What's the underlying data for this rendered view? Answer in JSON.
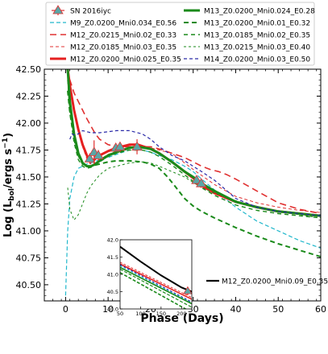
{
  "chart_data": {
    "type": "line",
    "xlabel": "Phase (Days)",
    "ylabel": "Log (L_bol/ergs s^-1)",
    "xlim": [
      -5,
      60
    ],
    "ylim": [
      40.35,
      42.5
    ],
    "xticks": [
      0,
      10,
      20,
      30,
      40,
      50,
      60
    ],
    "yticks": [
      40.5,
      40.75,
      41.0,
      41.25,
      41.5,
      41.75,
      42.0,
      42.25,
      42.5
    ],
    "legend_position": "top (above plot, 2 columns)",
    "observed": {
      "name": "SN 2016iyc",
      "color": "#e03030",
      "marker_color": "#5aa6a6",
      "points": [
        {
          "x": 5.7,
          "y": 41.67,
          "yerr": 0.05
        },
        {
          "x": 6.7,
          "y": 41.73,
          "yerr": 0.11
        },
        {
          "x": 7.7,
          "y": 41.7,
          "yerr": 0.05
        },
        {
          "x": 11.8,
          "y": 41.77,
          "yerr": 0.03
        },
        {
          "x": 12.8,
          "y": 41.78,
          "yerr": 0.03
        },
        {
          "x": 16.8,
          "y": 41.78,
          "yerr": 0.07
        },
        {
          "x": 30.8,
          "y": 41.47,
          "yerr": 0.04
        },
        {
          "x": 31.9,
          "y": 41.44,
          "yerr": 0.04
        }
      ]
    },
    "series": [
      {
        "name": "M9_Z0.0200_Mni0.034_E0.56",
        "color": "#22b8cc",
        "dash": "5,3",
        "width": 1.2,
        "x": [
          0,
          0.5,
          1,
          2,
          3,
          4,
          5,
          6,
          8,
          10,
          12,
          15,
          18,
          20,
          22,
          25,
          28,
          30,
          32,
          35,
          40,
          45,
          50,
          55,
          60
        ],
        "y": [
          40.4,
          41.0,
          41.3,
          41.5,
          41.58,
          41.6,
          41.62,
          41.63,
          41.66,
          41.68,
          41.71,
          41.75,
          41.75,
          41.73,
          41.7,
          41.66,
          41.6,
          41.55,
          41.48,
          41.38,
          41.22,
          41.09,
          41.0,
          40.91,
          40.84
        ]
      },
      {
        "name": "M12_Z0.0215_Mni0.02_E0.33",
        "color": "#e03030",
        "dash": "8,5",
        "width": 1.6,
        "x": [
          0.5,
          1,
          2,
          3,
          4,
          5,
          6,
          7,
          8,
          10,
          12,
          15,
          18,
          20,
          22,
          25,
          28,
          30,
          32,
          34,
          36,
          38,
          40,
          45,
          50,
          55,
          60
        ],
        "y": [
          42.5,
          42.4,
          42.28,
          42.2,
          42.12,
          42.04,
          41.97,
          41.9,
          41.85,
          41.8,
          41.78,
          41.78,
          41.78,
          41.78,
          41.76,
          41.72,
          41.68,
          41.64,
          41.6,
          41.57,
          41.55,
          41.52,
          41.48,
          41.37,
          41.26,
          41.2,
          41.16
        ]
      },
      {
        "name": "M12_Z0.0185_Mni0.03_E0.35",
        "color": "#e03030",
        "dash": "4,3",
        "width": 1.0,
        "x": [
          0.5,
          1,
          2,
          3,
          4,
          5,
          6,
          7,
          8,
          10,
          12,
          15,
          18,
          20,
          25,
          30,
          35,
          40,
          45,
          50,
          55,
          60
        ],
        "y": [
          42.45,
          42.3,
          42.1,
          41.93,
          41.78,
          41.67,
          41.62,
          41.63,
          41.66,
          41.71,
          41.74,
          41.77,
          41.78,
          41.77,
          41.72,
          41.57,
          41.43,
          41.32,
          41.26,
          41.22,
          41.19,
          41.17
        ]
      },
      {
        "name": "M12_Z0.0200_Mni0.025_E0.35",
        "color": "#e52020",
        "dash": "",
        "width": 3,
        "x": [
          0.5,
          1,
          2,
          3,
          4,
          5,
          5.5,
          6,
          6.5,
          7,
          8,
          10,
          12,
          15,
          17,
          20,
          22,
          25,
          28,
          30,
          32,
          35,
          40,
          45,
          50,
          55,
          60
        ],
        "y": [
          42.5,
          42.35,
          42.12,
          41.94,
          41.8,
          41.7,
          41.66,
          41.65,
          41.65,
          41.67,
          41.7,
          41.74,
          41.77,
          41.8,
          41.8,
          41.76,
          41.72,
          41.64,
          41.55,
          41.49,
          41.42,
          41.35,
          41.27,
          41.22,
          41.18,
          41.16,
          41.14
        ]
      },
      {
        "name": "M13_Z0.0200_Mni0.024_E0.28",
        "color": "#1a8a1a",
        "dash": "",
        "width": 3,
        "x": [
          0.5,
          1,
          2,
          3,
          4,
          5,
          6,
          7,
          8,
          10,
          12,
          15,
          17,
          20,
          22,
          25,
          28,
          30,
          32,
          35,
          40,
          45,
          50,
          55,
          60
        ],
        "y": [
          42.5,
          42.2,
          41.9,
          41.72,
          41.63,
          41.6,
          41.6,
          41.62,
          41.65,
          41.7,
          41.73,
          41.77,
          41.78,
          41.76,
          41.72,
          41.64,
          41.55,
          41.5,
          41.44,
          41.37,
          41.27,
          41.22,
          41.18,
          41.16,
          41.14
        ]
      },
      {
        "name": "M13_Z0.0200_Mni0.01_E0.32",
        "color": "#1a8a1a",
        "dash": "6,4",
        "width": 2,
        "x": [
          0.5,
          1,
          2,
          3,
          4,
          5,
          6,
          7,
          8,
          10,
          12,
          15,
          18,
          20,
          22,
          24,
          26,
          28,
          30,
          32,
          35,
          40,
          45,
          50,
          55,
          60
        ],
        "y": [
          42.3,
          42.1,
          41.85,
          41.7,
          41.62,
          41.6,
          41.6,
          41.61,
          41.62,
          41.64,
          41.65,
          41.65,
          41.64,
          41.62,
          41.58,
          41.5,
          41.4,
          41.3,
          41.23,
          41.18,
          41.12,
          41.03,
          40.95,
          40.88,
          40.82,
          40.76
        ]
      },
      {
        "name": "M13_Z0.0185_Mni0.02_E0.35",
        "color": "#1a8a1a",
        "dash": "5,4",
        "width": 1.4,
        "x": [
          0.5,
          1,
          2,
          3,
          4,
          5,
          6,
          7,
          8,
          10,
          12,
          15,
          18,
          20,
          22,
          25,
          28,
          30,
          32,
          35,
          40,
          45,
          50,
          55,
          60
        ],
        "y": [
          42.4,
          42.1,
          41.82,
          41.66,
          41.6,
          41.58,
          41.59,
          41.61,
          41.64,
          41.69,
          41.72,
          41.75,
          41.75,
          41.73,
          41.69,
          41.61,
          41.52,
          41.46,
          41.4,
          41.33,
          41.24,
          41.19,
          41.16,
          41.14,
          41.12
        ]
      },
      {
        "name": "M13_Z0.0215_Mni0.03_E0.40",
        "color": "#1a8a1a",
        "dash": "3,3",
        "width": 1.0,
        "x": [
          0.5,
          1,
          2,
          3,
          4,
          5,
          6,
          7,
          8,
          10,
          12,
          15,
          18,
          20,
          22,
          25,
          28,
          30,
          32,
          35,
          40,
          45,
          50,
          55,
          60
        ],
        "y": [
          41.4,
          41.2,
          41.1,
          41.15,
          41.25,
          41.35,
          41.42,
          41.47,
          41.52,
          41.58,
          41.6,
          41.63,
          41.64,
          41.63,
          41.6,
          41.55,
          41.5,
          41.45,
          41.4,
          41.35,
          41.28,
          41.22,
          41.18,
          41.15,
          41.12
        ]
      },
      {
        "name": "M14_Z0.0200_Mni0.03_E0.50",
        "color": "#2a2aa8",
        "dash": "4,3",
        "width": 1.2,
        "x": [
          1,
          1.5,
          2,
          3,
          4,
          5,
          6,
          8,
          10,
          12,
          15,
          18,
          20,
          22,
          25,
          28,
          30,
          32,
          35,
          38,
          40,
          45,
          50,
          55,
          60
        ],
        "y": [
          41.85,
          41.9,
          41.89,
          41.9,
          41.93,
          41.92,
          41.91,
          41.91,
          41.92,
          41.93,
          41.93,
          41.9,
          41.85,
          41.78,
          41.7,
          41.65,
          41.6,
          41.55,
          41.47,
          41.37,
          41.3,
          41.22,
          41.18,
          41.16,
          41.14
        ]
      }
    ],
    "inset": {
      "xlim": [
        50,
        225
      ],
      "ylim": [
        40.0,
        42.0
      ],
      "xticks": [
        50,
        100,
        150,
        200
      ],
      "yticks": [
        40.0,
        40.5,
        41.0,
        41.5,
        42.0
      ],
      "highlight_series": {
        "name": "M12_Z0.0200_Mni0.09_E0.35",
        "color": "#000000",
        "x": [
          50,
          100,
          150,
          200,
          225
        ],
        "y": [
          41.8,
          41.37,
          40.97,
          40.62,
          40.5
        ]
      },
      "observed_point": {
        "x": 215,
        "y": 40.52,
        "yerr": 0.12
      },
      "lines": [
        {
          "color": "#e52020",
          "dash": "",
          "width": 1.6,
          "x": [
            50,
            225
          ],
          "y": [
            41.3,
            40.28
          ]
        },
        {
          "color": "#e03030",
          "dash": "3,2",
          "width": 1.0,
          "x": [
            50,
            225
          ],
          "y": [
            41.35,
            40.33
          ]
        },
        {
          "color": "#22b8cc",
          "dash": "3,2",
          "width": 1.0,
          "x": [
            50,
            225
          ],
          "y": [
            41.25,
            40.18
          ]
        },
        {
          "color": "#2a2aa8",
          "dash": "3,2",
          "width": 1.0,
          "x": [
            50,
            225
          ],
          "y": [
            41.28,
            40.2
          ]
        },
        {
          "color": "#1a8a1a",
          "dash": "",
          "width": 1.6,
          "x": [
            50,
            225
          ],
          "y": [
            41.2,
            40.15
          ]
        },
        {
          "color": "#1a8a1a",
          "dash": "4,2",
          "width": 1.2,
          "x": [
            50,
            225
          ],
          "y": [
            41.15,
            40.05
          ]
        },
        {
          "color": "#1a8a1a",
          "dash": "4,2",
          "width": 1.6,
          "x": [
            50,
            225
          ],
          "y": [
            41.05,
            39.9
          ]
        }
      ]
    }
  }
}
